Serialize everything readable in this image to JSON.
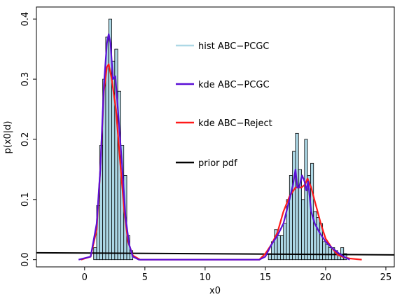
{
  "chart_data": {
    "type": "histogram",
    "title": "",
    "xlabel": "x0",
    "ylabel": "p(x0|d)",
    "xlim": [
      -4,
      25.7
    ],
    "ylim": [
      -0.012,
      0.42
    ],
    "x_ticks": [
      0,
      5,
      10,
      15,
      20,
      25
    ],
    "y_ticks": [
      0.0,
      0.1,
      0.2,
      0.3,
      0.4
    ],
    "x_tick_labels": [
      "0",
      "5",
      "10",
      "15",
      "20",
      "25"
    ],
    "y_tick_labels": [
      "0.0",
      "0.1",
      "0.2",
      "0.3",
      "0.4"
    ],
    "legend_position": "upper-center",
    "legend": [
      {
        "label": "hist ABC−PCGC",
        "color": "#add8e6"
      },
      {
        "label": "kde ABC−PCGC",
        "color": "#5b0fd6"
      },
      {
        "label": "kde ABC−Reject",
        "color": "#ff1a1a"
      },
      {
        "label": "prior pdf",
        "color": "#000000"
      }
    ],
    "histogram": {
      "name": "hist ABC−PCGC",
      "bin_width": 0.25,
      "fill": "#add8e6",
      "bins": [
        [
          0.75,
          0.02
        ],
        [
          1.0,
          0.09
        ],
        [
          1.25,
          0.19
        ],
        [
          1.5,
          0.3
        ],
        [
          1.75,
          0.37
        ],
        [
          2.0,
          0.4
        ],
        [
          2.25,
          0.33
        ],
        [
          2.5,
          0.35
        ],
        [
          2.75,
          0.28
        ],
        [
          3.0,
          0.19
        ],
        [
          3.25,
          0.14
        ],
        [
          3.5,
          0.04
        ],
        [
          3.75,
          0.015
        ],
        [
          15.25,
          0.01
        ],
        [
          15.5,
          0.03
        ],
        [
          15.75,
          0.05
        ],
        [
          16.0,
          0.04
        ],
        [
          16.25,
          0.04
        ],
        [
          16.5,
          0.06
        ],
        [
          16.75,
          0.1
        ],
        [
          17.0,
          0.14
        ],
        [
          17.25,
          0.18
        ],
        [
          17.5,
          0.21
        ],
        [
          17.75,
          0.15
        ],
        [
          18.0,
          0.1
        ],
        [
          18.25,
          0.2
        ],
        [
          18.5,
          0.14
        ],
        [
          18.75,
          0.16
        ],
        [
          19.0,
          0.08
        ],
        [
          19.25,
          0.07
        ],
        [
          19.5,
          0.06
        ],
        [
          19.75,
          0.03
        ],
        [
          20.0,
          0.025
        ],
        [
          20.25,
          0.02
        ],
        [
          20.5,
          0.02
        ],
        [
          20.75,
          0.015
        ],
        [
          21.0,
          0.01
        ],
        [
          21.25,
          0.02
        ],
        [
          21.5,
          0.01
        ]
      ]
    },
    "series": [
      {
        "name": "kde ABC−PCGC",
        "color": "#5b0fd6",
        "points": [
          [
            -0.5,
            0.0
          ],
          [
            0.5,
            0.005
          ],
          [
            1.0,
            0.06
          ],
          [
            1.3,
            0.15
          ],
          [
            1.6,
            0.29
          ],
          [
            1.85,
            0.36
          ],
          [
            2.0,
            0.375
          ],
          [
            2.15,
            0.36
          ],
          [
            2.35,
            0.3
          ],
          [
            2.55,
            0.305
          ],
          [
            2.8,
            0.24
          ],
          [
            3.1,
            0.16
          ],
          [
            3.4,
            0.07
          ],
          [
            3.7,
            0.025
          ],
          [
            4.0,
            0.005
          ],
          [
            4.5,
            0.0
          ],
          [
            14.5,
            0.0
          ],
          [
            15.0,
            0.005
          ],
          [
            15.5,
            0.025
          ],
          [
            16.0,
            0.04
          ],
          [
            16.5,
            0.06
          ],
          [
            17.0,
            0.1
          ],
          [
            17.3,
            0.125
          ],
          [
            17.5,
            0.15
          ],
          [
            17.65,
            0.12
          ],
          [
            17.8,
            0.12
          ],
          [
            18.05,
            0.14
          ],
          [
            18.25,
            0.13
          ],
          [
            18.4,
            0.115
          ],
          [
            18.55,
            0.13
          ],
          [
            18.8,
            0.08
          ],
          [
            19.1,
            0.06
          ],
          [
            19.5,
            0.045
          ],
          [
            20.0,
            0.03
          ],
          [
            20.5,
            0.02
          ],
          [
            21.0,
            0.012
          ],
          [
            21.5,
            0.005
          ],
          [
            22.0,
            0.0
          ]
        ]
      },
      {
        "name": "kde ABC−Reject",
        "color": "#ff1a1a",
        "points": [
          [
            -0.3,
            0.0
          ],
          [
            0.5,
            0.005
          ],
          [
            1.0,
            0.05
          ],
          [
            1.3,
            0.15
          ],
          [
            1.6,
            0.28
          ],
          [
            1.85,
            0.32
          ],
          [
            2.0,
            0.325
          ],
          [
            2.25,
            0.3
          ],
          [
            2.6,
            0.25
          ],
          [
            3.0,
            0.15
          ],
          [
            3.3,
            0.08
          ],
          [
            3.6,
            0.03
          ],
          [
            4.0,
            0.007
          ],
          [
            4.6,
            0.0
          ],
          [
            14.5,
            0.0
          ],
          [
            15.0,
            0.01
          ],
          [
            15.5,
            0.025
          ],
          [
            16.0,
            0.045
          ],
          [
            16.5,
            0.08
          ],
          [
            17.0,
            0.105
          ],
          [
            17.5,
            0.12
          ],
          [
            18.0,
            0.12
          ],
          [
            18.3,
            0.125
          ],
          [
            18.5,
            0.135
          ],
          [
            18.8,
            0.12
          ],
          [
            19.2,
            0.09
          ],
          [
            19.6,
            0.06
          ],
          [
            20.0,
            0.035
          ],
          [
            20.5,
            0.02
          ],
          [
            21.0,
            0.008
          ],
          [
            21.5,
            0.004
          ],
          [
            22.0,
            0.002
          ],
          [
            23.0,
            0.0
          ]
        ]
      },
      {
        "name": "prior pdf",
        "color": "#000000",
        "points": [
          [
            -4.0,
            0.0115
          ],
          [
            25.7,
            0.008
          ]
        ]
      }
    ]
  }
}
